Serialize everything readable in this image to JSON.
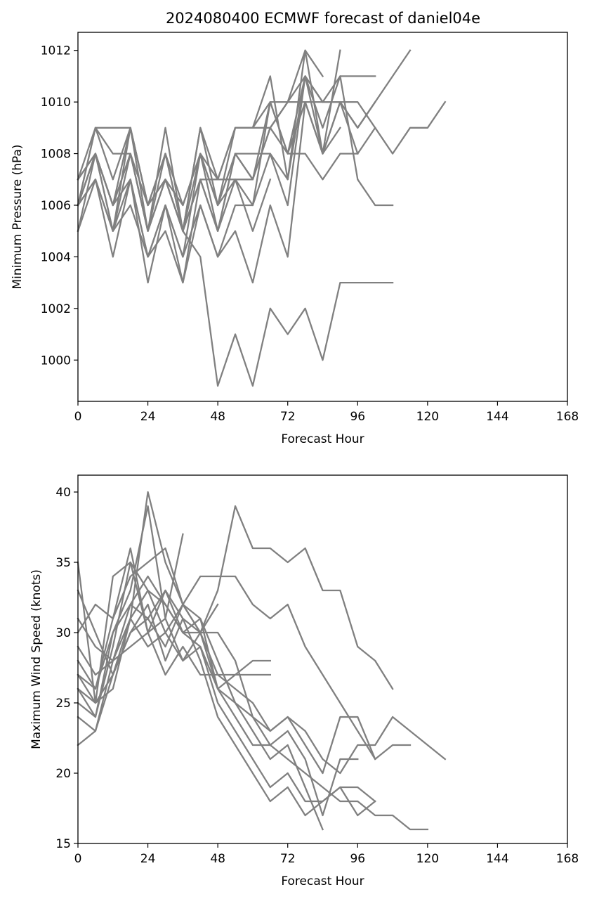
{
  "title": "2024080400 ECMWF forecast of daniel04e",
  "chart_data": [
    {
      "type": "line",
      "title": "2024080400 ECMWF forecast of daniel04e",
      "xlabel": "Forecast Hour",
      "ylabel": "Minimum Pressure (hPa)",
      "xlim": [
        0,
        168
      ],
      "ylim": [
        998.4,
        1012.7
      ],
      "xticks": [
        0,
        24,
        48,
        72,
        96,
        120,
        144,
        168
      ],
      "yticks": [
        1000,
        1002,
        1004,
        1006,
        1008,
        1010,
        1012
      ],
      "grid": false,
      "line_color": "#808080",
      "series": [
        {
          "x": [
            0,
            6,
            12,
            18,
            24,
            30,
            36,
            42,
            48,
            54,
            60,
            66,
            72,
            78,
            84,
            90,
            96,
            102,
            108
          ],
          "y": [
            1006,
            1008,
            1006,
            1008,
            1005,
            1007,
            1005,
            1004,
            999,
            1001,
            999,
            1002,
            1001,
            1002,
            1000,
            1003,
            1003,
            1003,
            1003
          ]
        },
        {
          "x": [
            0,
            6,
            12,
            18,
            24,
            30,
            36,
            42,
            48,
            54,
            60,
            66,
            72,
            78,
            84,
            90,
            96,
            102,
            108,
            114,
            120,
            126
          ],
          "y": [
            1006,
            1009,
            1007,
            1009,
            1006,
            1007,
            1005,
            1007,
            1005,
            1007,
            1007,
            1009,
            1010,
            1011,
            1010,
            1010,
            1010,
            1009,
            1008,
            1009,
            1009,
            1010
          ]
        },
        {
          "x": [
            0,
            6,
            12,
            18,
            24,
            30,
            36,
            42,
            48,
            54,
            60,
            66,
            72,
            78,
            84,
            90
          ],
          "y": [
            1005,
            1008,
            1005,
            1007,
            1004,
            1006,
            1004,
            1006,
            1004,
            1005,
            1003,
            1006,
            1004,
            1010,
            1008,
            1012
          ]
        },
        {
          "x": [
            0,
            6,
            12,
            18,
            24,
            30,
            36,
            42,
            48,
            54,
            60,
            66,
            72,
            78,
            84,
            90,
            96,
            102,
            108,
            114
          ],
          "y": [
            1007,
            1008,
            1006,
            1009,
            1006,
            1008,
            1006,
            1008,
            1006,
            1009,
            1009,
            1010,
            1010,
            1010,
            1010,
            1010,
            1009,
            1010,
            1011,
            1012
          ]
        },
        {
          "x": [
            0,
            6,
            12,
            18,
            24,
            30,
            36,
            42,
            48,
            54,
            60,
            66,
            72,
            78,
            84,
            90,
            96,
            102,
            108
          ],
          "y": [
            1006,
            1007,
            1005,
            1008,
            1005,
            1008,
            1005,
            1009,
            1006,
            1008,
            1008,
            1008,
            1007,
            1011,
            1010,
            1011,
            1007,
            1006,
            1006
          ]
        },
        {
          "x": [
            0,
            6,
            12,
            18,
            24,
            30,
            36,
            42,
            48,
            54,
            60,
            66,
            72,
            78,
            84
          ],
          "y": [
            1007,
            1009,
            1008,
            1008,
            1005,
            1007,
            1006,
            1008,
            1007,
            1009,
            1009,
            1009,
            1010,
            1012,
            1011
          ]
        },
        {
          "x": [
            0,
            6,
            12,
            18,
            24,
            30,
            36,
            42,
            48,
            54,
            60,
            66,
            72,
            78,
            84,
            90,
            96,
            102
          ],
          "y": [
            1006,
            1008,
            1006,
            1007,
            1004,
            1006,
            1004,
            1008,
            1006,
            1007,
            1006,
            1010,
            1008,
            1010,
            1008,
            1010,
            1009,
            1010
          ]
        },
        {
          "x": [
            0,
            6,
            12,
            18,
            24,
            30,
            36,
            42,
            48,
            54,
            60,
            66,
            72,
            78,
            84,
            90,
            96,
            102
          ],
          "y": [
            1005,
            1007,
            1004,
            1007,
            1003,
            1006,
            1003,
            1007,
            1005,
            1008,
            1007,
            1010,
            1008,
            1011,
            1009,
            1011,
            1011,
            1011
          ]
        },
        {
          "x": [
            0,
            6,
            12,
            18,
            24,
            30,
            36,
            42,
            48,
            54,
            60,
            66,
            72,
            78,
            84,
            90,
            96,
            102
          ],
          "y": [
            1006,
            1008,
            1005,
            1009,
            1005,
            1009,
            1005,
            1009,
            1007,
            1009,
            1009,
            1011,
            1007,
            1012,
            1008,
            1010,
            1008,
            1009
          ]
        },
        {
          "x": [
            0,
            6,
            12,
            18,
            24,
            30,
            36,
            42,
            48,
            54,
            60,
            66
          ],
          "y": [
            1006,
            1009,
            1009,
            1009,
            1006,
            1008,
            1005,
            1007,
            1007,
            1007,
            1005,
            1007
          ]
        },
        {
          "x": [
            0,
            6,
            12,
            18,
            24,
            30,
            36,
            42,
            48,
            54,
            60,
            66,
            72,
            78,
            84,
            90,
            96
          ],
          "y": [
            1007,
            1008,
            1006,
            1008,
            1006,
            1007,
            1005,
            1008,
            1005,
            1008,
            1007,
            1009,
            1008,
            1008,
            1007,
            1008,
            1008
          ]
        },
        {
          "x": [
            0,
            6,
            12,
            18,
            24,
            30,
            36,
            42,
            48,
            54,
            60,
            66,
            72,
            78,
            84,
            90
          ],
          "y": [
            1006,
            1007,
            1005,
            1006,
            1004,
            1005,
            1003,
            1006,
            1004,
            1006,
            1006,
            1008,
            1006,
            1011,
            1008,
            1009
          ]
        }
      ]
    },
    {
      "type": "line",
      "title": "",
      "xlabel": "Forecast Hour",
      "ylabel": "Maximum Wind Speed (knots)",
      "xlim": [
        0,
        168
      ],
      "ylim": [
        15,
        41.2
      ],
      "xticks": [
        0,
        24,
        48,
        72,
        96,
        120,
        144,
        168
      ],
      "yticks": [
        15,
        20,
        25,
        30,
        35,
        40
      ],
      "grid": false,
      "line_color": "#808080",
      "series": [
        {
          "x": [
            0,
            6,
            12,
            18,
            24,
            30,
            36,
            42,
            48,
            54,
            60,
            66,
            72,
            78,
            84,
            90,
            96,
            102,
            108
          ],
          "y": [
            26,
            24,
            30,
            32,
            31,
            33,
            31,
            30,
            33,
            39,
            36,
            36,
            35,
            36,
            33,
            33,
            29,
            28,
            26
          ]
        },
        {
          "x": [
            0,
            6,
            12,
            18,
            24,
            30,
            36,
            42,
            48,
            54,
            60,
            66,
            72,
            78,
            84,
            90,
            96,
            102,
            108,
            114
          ],
          "y": [
            27,
            25,
            27,
            31,
            40,
            35,
            32,
            34,
            34,
            34,
            32,
            31,
            32,
            29,
            27,
            25,
            23,
            21,
            22,
            22
          ]
        },
        {
          "x": [
            0,
            6,
            12,
            18,
            24,
            30,
            36,
            42,
            48,
            54,
            60,
            66,
            72,
            78,
            84,
            90,
            96,
            102,
            108,
            114,
            120,
            126
          ],
          "y": [
            25,
            24,
            29,
            35,
            33,
            32,
            30,
            30,
            27,
            26,
            25,
            23,
            24,
            23,
            21,
            20,
            22,
            22,
            24,
            23,
            22,
            21
          ]
        },
        {
          "x": [
            0,
            6,
            12,
            18,
            24,
            30,
            36,
            42,
            48,
            54,
            60,
            66,
            72,
            78,
            84
          ],
          "y": [
            28,
            26,
            31,
            34,
            35,
            36,
            32,
            31,
            28,
            25,
            23,
            21,
            22,
            19,
            16
          ]
        },
        {
          "x": [
            0,
            6,
            12,
            18,
            24,
            30,
            36,
            42,
            48,
            54,
            60,
            66,
            72,
            78,
            84,
            90,
            96,
            102
          ],
          "y": [
            30,
            32,
            31,
            36,
            30,
            33,
            30,
            29,
            25,
            23,
            21,
            19,
            20,
            18,
            18,
            19,
            19,
            18
          ]
        },
        {
          "x": [
            0,
            6,
            12,
            18,
            24,
            30,
            36,
            42,
            48,
            54,
            60,
            66,
            72,
            78,
            84,
            90,
            96,
            102
          ],
          "y": [
            33,
            30,
            27,
            30,
            32,
            28,
            31,
            28,
            24,
            22,
            20,
            18,
            19,
            17,
            18,
            19,
            17,
            18
          ]
        },
        {
          "x": [
            0,
            6,
            12,
            18,
            24,
            30,
            36,
            42,
            48,
            54,
            60,
            66,
            72,
            78,
            84,
            90,
            96,
            102,
            108,
            114,
            120
          ],
          "y": [
            29,
            27,
            28,
            31,
            29,
            30,
            28,
            29,
            26,
            25,
            24,
            22,
            21,
            20,
            19,
            18,
            18,
            17,
            17,
            16,
            16
          ]
        },
        {
          "x": [
            0,
            6,
            12,
            18,
            24,
            30,
            36,
            42,
            48,
            54,
            60,
            66
          ],
          "y": [
            31,
            29,
            28,
            29,
            30,
            27,
            29,
            27,
            27,
            27,
            27,
            27
          ]
        },
        {
          "x": [
            0,
            6,
            12,
            18,
            24,
            30,
            36,
            42,
            48,
            54,
            60,
            66
          ],
          "y": [
            26,
            25,
            26,
            31,
            33,
            30,
            32,
            30,
            26,
            27,
            28,
            28
          ]
        },
        {
          "x": [
            0,
            6,
            12,
            18,
            24,
            30,
            36
          ],
          "y": [
            27,
            26,
            30,
            33,
            39,
            31,
            37
          ]
        },
        {
          "x": [
            0,
            6,
            12,
            18,
            24,
            30,
            36,
            42,
            48,
            54,
            60,
            66,
            72,
            78,
            84,
            90,
            96
          ],
          "y": [
            24,
            23,
            28,
            32,
            34,
            32,
            30,
            31,
            26,
            24,
            22,
            22,
            23,
            21,
            17,
            21,
            21
          ]
        },
        {
          "x": [
            0,
            6,
            12,
            18,
            24,
            30,
            36,
            42,
            48,
            54,
            60,
            66,
            72,
            78,
            84,
            90,
            96,
            102
          ],
          "y": [
            35,
            25,
            34,
            35,
            30,
            31,
            28,
            30,
            30,
            28,
            24,
            23,
            24,
            22,
            20,
            24,
            24,
            21
          ]
        },
        {
          "x": [
            0,
            6,
            12,
            18,
            24,
            30,
            36,
            42,
            48
          ],
          "y": [
            22,
            23,
            27,
            30,
            31,
            29,
            32,
            30,
            32
          ]
        }
      ]
    }
  ]
}
